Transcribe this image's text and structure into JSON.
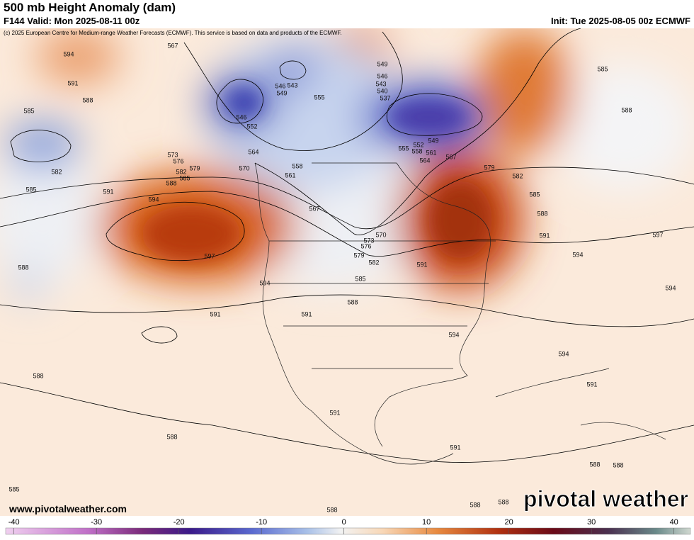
{
  "header": {
    "title": "500 mb Height Anomaly (dam)",
    "valid": "F144 Valid: Mon 2025-08-11 00z",
    "init": "Init: Tue 2025-08-05 00z ECMWF",
    "copyright": "(c) 2025 European Centre for Medium-range Weather Forecasts (ECMWF). This service is based on data and products of the ECMWF."
  },
  "map": {
    "contour_labels": [
      "594",
      "591",
      "588",
      "585",
      "567",
      "546",
      "543",
      "549",
      "555",
      "546",
      "552",
      "549",
      "546",
      "543",
      "540",
      "537",
      "585",
      "588",
      "582",
      "585",
      "573",
      "576",
      "582",
      "579",
      "585",
      "588",
      "591",
      "594",
      "597",
      "564",
      "570",
      "561",
      "558",
      "567",
      "549",
      "552",
      "555",
      "558",
      "561",
      "564",
      "567",
      "579",
      "582",
      "585",
      "588",
      "591",
      "597",
      "594",
      "570",
      "573",
      "576",
      "579",
      "582",
      "585",
      "588",
      "591",
      "591",
      "594",
      "591",
      "594",
      "594",
      "594",
      "588",
      "588",
      "591",
      "591",
      "588",
      "591",
      "588",
      "588",
      "585",
      "588",
      "588",
      "588"
    ]
  },
  "footer": {
    "website": "www.pivotalweather.com",
    "brand": "pivotal weather"
  },
  "colorbar": {
    "lim": [
      -41,
      42
    ],
    "ticks": [
      -40,
      -30,
      -20,
      -10,
      0,
      10,
      20,
      30,
      40
    ]
  }
}
